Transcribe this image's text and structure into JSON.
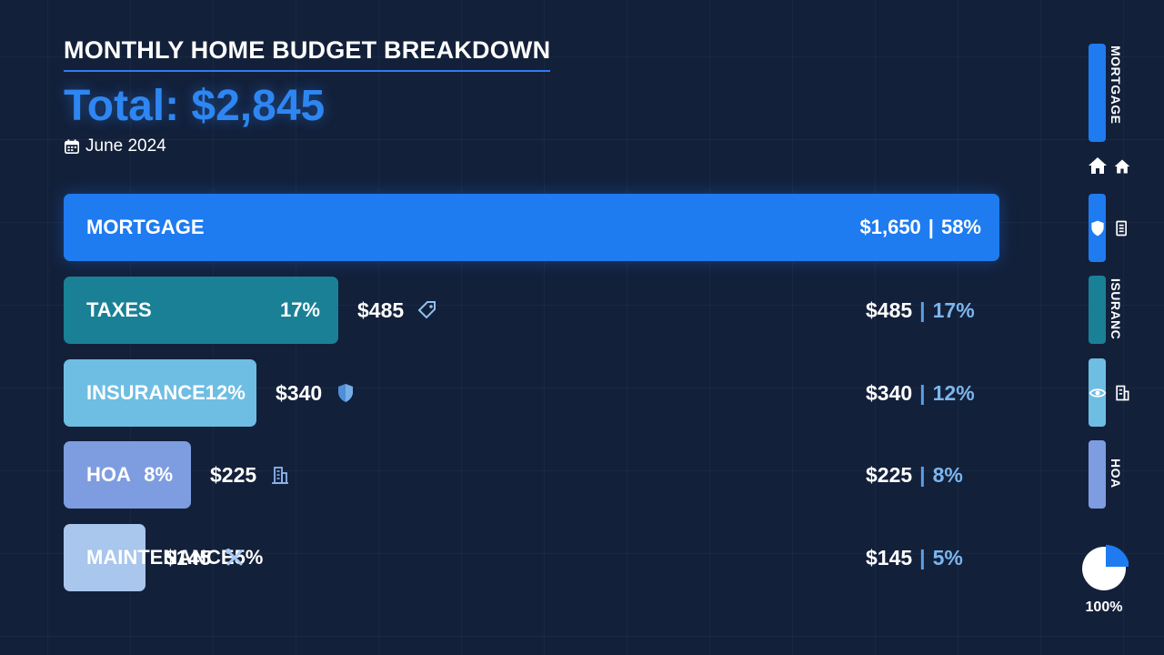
{
  "header": {
    "title": "MONTHLY HOME BUDGET BREAKDOWN",
    "total": "Total: $2,845",
    "date": "June 2024",
    "date_icon": "calendar-icon"
  },
  "chart_data": {
    "type": "bar",
    "orientation": "horizontal",
    "title": "MONTHLY HOME BUDGET BREAKDOWN",
    "categories": [
      "MORTGAGE",
      "TAXES",
      "INSURANCE",
      "HOA",
      "MAINTENANCE"
    ],
    "values": [
      1650,
      485,
      340,
      225,
      145
    ],
    "value_labels": [
      "$1,650",
      "$485",
      "$340",
      "$225",
      "$145"
    ],
    "percent_labels": [
      "58%",
      "17%",
      "12%",
      "8%",
      "5%"
    ],
    "percents": [
      58,
      17,
      12,
      8,
      5
    ],
    "colors": [
      "#1e7bf0",
      "#1a8096",
      "#6ebde3",
      "#7e9de0",
      "#a9c6ec"
    ],
    "icons": [
      "",
      "tag-icon",
      "shield-icon",
      "building-icon",
      "tools-icon"
    ],
    "xlim": [
      0,
      1650
    ],
    "grid": true
  },
  "sidebar": {
    "items": [
      {
        "label": "MORTGAGE",
        "color": "#1e7bf0"
      },
      {
        "label": "",
        "color": "#1e7bf0"
      },
      {
        "label": "ISURANC",
        "color": "#1a8096"
      },
      {
        "label": "",
        "color": "#6ebde3"
      },
      {
        "label": "HOA",
        "color": "#7e9de0"
      }
    ],
    "icons": [
      "home-icon",
      "home-icon",
      "shield-icon",
      "document-icon",
      "eye-shield-icon",
      "building-icon"
    ],
    "pie_label": "100%",
    "pie_percent": 25
  }
}
